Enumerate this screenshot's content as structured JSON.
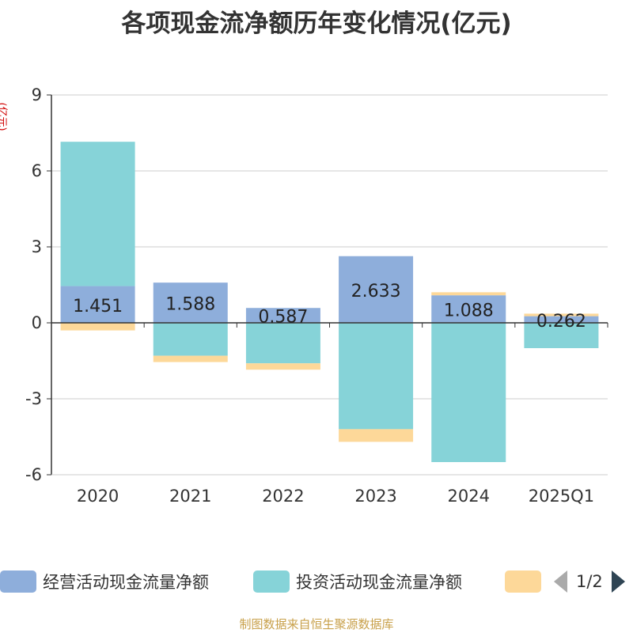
{
  "title": "各项现金流净额历年变化情况(亿元)",
  "unit_label": "(亿元)",
  "source": "制图数据来自恒生聚源数据库",
  "legend": {
    "items": [
      {
        "label": "经营活动现金流量净额",
        "color": "#8eaedb"
      },
      {
        "label": "投资活动现金流量净额",
        "color": "#86d3d8"
      },
      {
        "label": "",
        "color": "#fdd899"
      }
    ],
    "page": "1/2"
  },
  "chart_data": {
    "type": "bar",
    "stacked": true,
    "categories": [
      "2020",
      "2021",
      "2022",
      "2023",
      "2024",
      "2025Q1"
    ],
    "y_ticks": [
      "9",
      "6",
      "3",
      "0",
      "-3",
      "-6"
    ],
    "ylim": [
      -6,
      9
    ],
    "grid": true,
    "series": [
      {
        "name": "经营活动现金流量净额",
        "color": "#8eaedb",
        "values": [
          1.451,
          1.588,
          0.587,
          2.633,
          1.088,
          0.262
        ],
        "labels": [
          "1.451",
          "1.588",
          "0.587",
          "2.633",
          "1.088",
          "0.262"
        ]
      },
      {
        "name": "投资活动现金流量净额",
        "color": "#86d3d8",
        "values": [
          5.7,
          -1.3,
          -1.6,
          -4.2,
          -5.5,
          -1.0
        ]
      },
      {
        "name": "",
        "color": "#fdd899",
        "values": [
          -0.3,
          -0.25,
          -0.25,
          -0.5,
          0.12,
          0.1
        ]
      }
    ]
  }
}
